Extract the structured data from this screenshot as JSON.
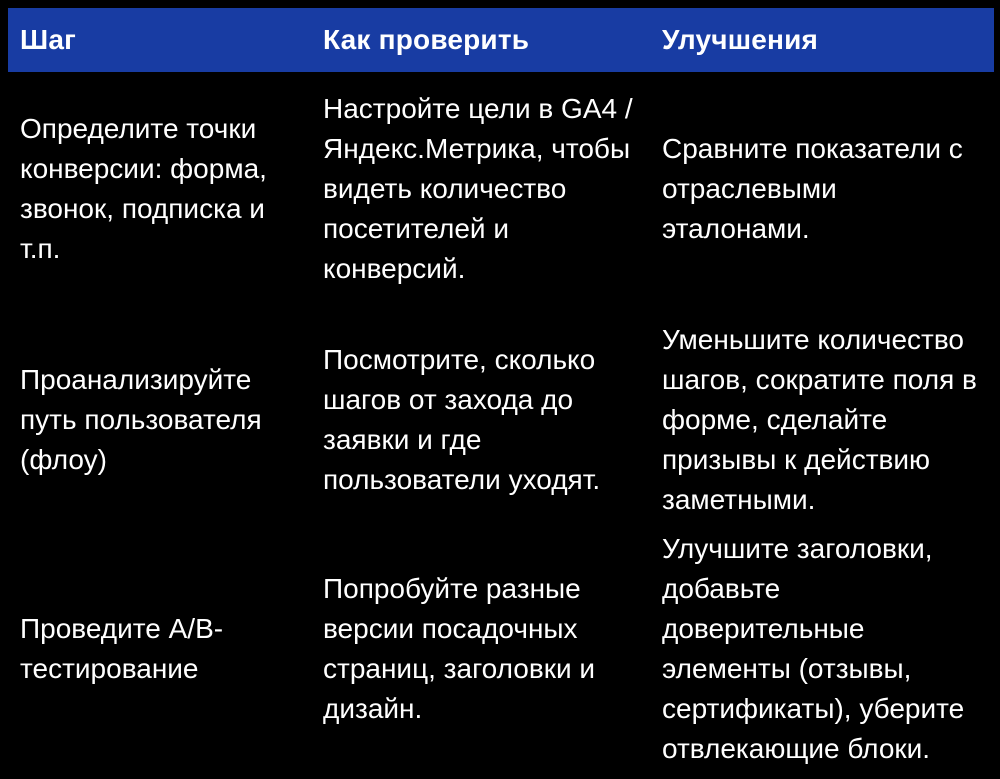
{
  "theme": {
    "background": "#000000",
    "header_bg": "#183ca3",
    "header_text": "#ffffff",
    "body_text": "#ffffff"
  },
  "table": {
    "columns": [
      {
        "label": "Шаг"
      },
      {
        "label": "Как проверить"
      },
      {
        "label": "Улучшения"
      }
    ],
    "rows": [
      {
        "cells": [
          "Определите точки\nконверсии: форма,\nзвонок, подписка и\nт.п.",
          "Настройте цели в GA4 /\nЯндекс.Метрика, чтобы\nвидеть количество\nпосетителей и\nконверсий.",
          "Сравните показатели с\nотраслевыми эталонами."
        ]
      },
      {
        "cells": [
          "Проанализируйте\nпуть пользователя\n(флоу)",
          "Посмотрите, сколько\nшагов от захода до\nзаявки и где\nпользователи уходят.",
          "Уменьшите количество\nшагов, сократите поля в\nформе, сделайте\nпризывы к действию\nзаметными."
        ]
      },
      {
        "cells": [
          "Проведите A/B-\nтестирование",
          "Попробуйте разные\nверсии посадочных\nстраниц, заголовки и\nдизайн.",
          "Улучшите заголовки,\nдобавьте доверительные\nэлементы (отзывы,\nсертификаты), уберите\nотвлекающие блоки."
        ]
      }
    ]
  }
}
